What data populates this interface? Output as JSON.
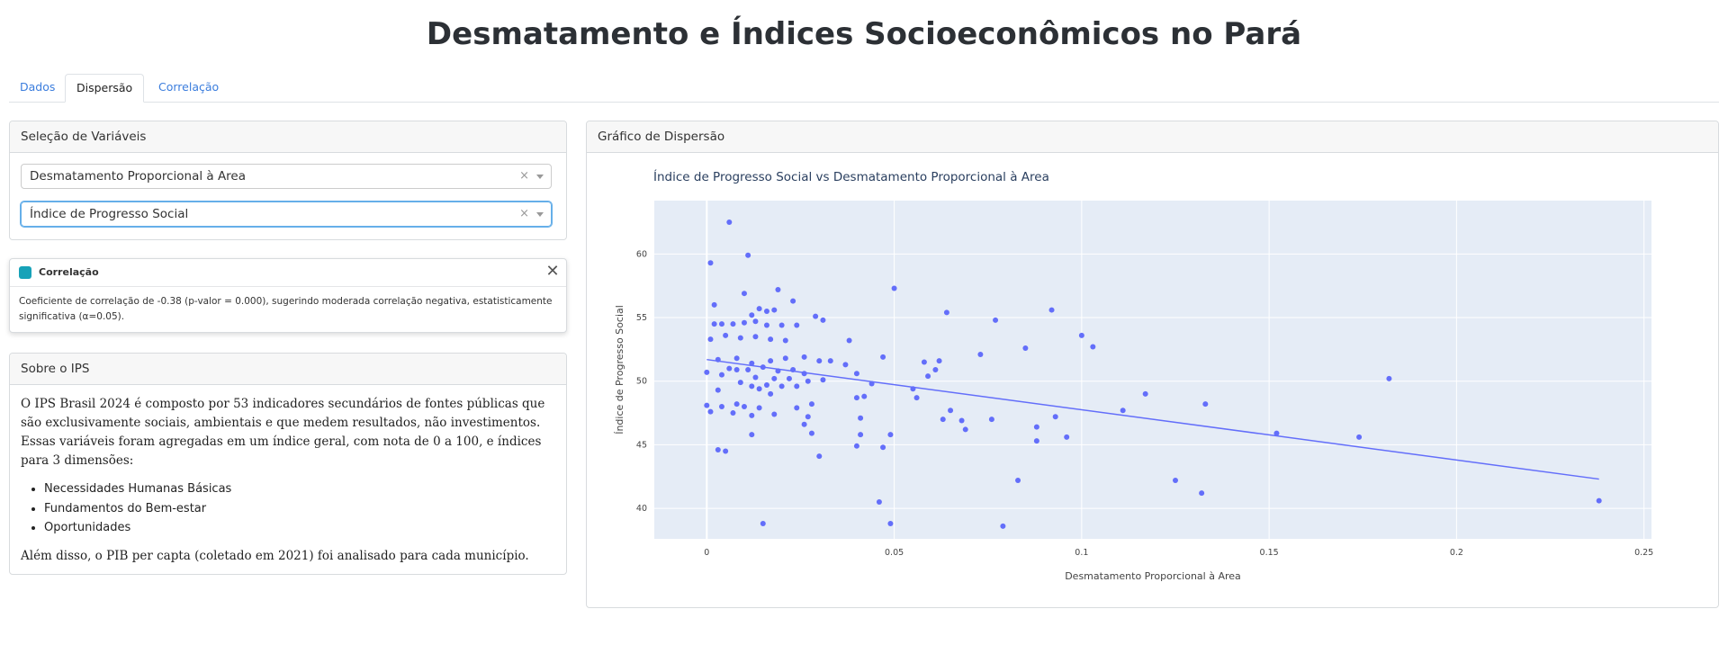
{
  "page": {
    "title": "Desmatamento e Índices Socioeconômicos no Pará"
  },
  "tabs": [
    {
      "label": "Dados",
      "active": false
    },
    {
      "label": "Dispersão",
      "active": true
    },
    {
      "label": "Correlação",
      "active": false
    }
  ],
  "variables": {
    "header": "Seleção de Variáveis",
    "x_value": "Desmatamento Proporcional à Area",
    "y_value": "Índice de Progresso Social",
    "clear_glyph": "×"
  },
  "toast": {
    "title": "Correlação",
    "body": "Coeficiente de correlação de -0.38 (p-valor = 0.000), sugerindo moderada correlação negativa, estatisticamente significativa (α=0.05).",
    "close_glyph": "✕",
    "icon_color": "#17a2b8"
  },
  "about": {
    "header": "Sobre o IPS",
    "intro": "O IPS Brasil 2024 é composto por 53 indicadores secundários de fontes públicas que são exclusivamente sociais, ambientais e que medem resultados, não investimentos. Essas variáveis foram agregadas em um índice geral, com nota de 0 a 100, e índices para 3 dimensões:",
    "dimensions": [
      "Necessidades Humanas Básicas",
      "Fundamentos do Bem-estar",
      "Oportunidades"
    ],
    "outro": "Além disso, o PIB per capta (coletado em 2021) foi analisado para cada município."
  },
  "chart_card": {
    "header": "Gráfico de Dispersão"
  },
  "chart_data": {
    "type": "scatter",
    "title": "Índice de Progresso Social vs Desmatamento Proporcional à Area",
    "xlabel": "Desmatamento Proporcional à Area",
    "ylabel": "Índice de Progresso Social",
    "xlim": [
      -0.014,
      0.252
    ],
    "ylim": [
      37.6,
      64.2
    ],
    "xticks": [
      0,
      0.05,
      0.1,
      0.15,
      0.2,
      0.25
    ],
    "xtick_labels": [
      "0",
      "0.05",
      "0.1",
      "0.15",
      "0.2",
      "0.25"
    ],
    "yticks": [
      40,
      45,
      50,
      55,
      60
    ],
    "yticks_labels": [
      "40",
      "45",
      "50",
      "55",
      "60"
    ],
    "grid": true,
    "marker_color": "#636efa",
    "plot_bg": "#e5ecf6",
    "trendline": {
      "x": [
        0,
        0.238
      ],
      "y": [
        51.7,
        42.3
      ]
    },
    "points": [
      [
        0.006,
        62.5
      ],
      [
        0.001,
        59.3
      ],
      [
        0.011,
        59.9
      ],
      [
        0.01,
        56.9
      ],
      [
        0.019,
        57.2
      ],
      [
        0.05,
        57.3
      ],
      [
        0.002,
        56.0
      ],
      [
        0.023,
        56.3
      ],
      [
        0.092,
        55.6
      ],
      [
        0.064,
        55.4
      ],
      [
        0.014,
        55.7
      ],
      [
        0.016,
        55.5
      ],
      [
        0.018,
        55.6
      ],
      [
        0.012,
        55.2
      ],
      [
        0.029,
        55.1
      ],
      [
        0.077,
        54.8
      ],
      [
        0.031,
        54.8
      ],
      [
        0.002,
        54.5
      ],
      [
        0.004,
        54.5
      ],
      [
        0.007,
        54.5
      ],
      [
        0.01,
        54.6
      ],
      [
        0.013,
        54.7
      ],
      [
        0.016,
        54.4
      ],
      [
        0.02,
        54.4
      ],
      [
        0.024,
        54.4
      ],
      [
        0.001,
        53.3
      ],
      [
        0.005,
        53.6
      ],
      [
        0.009,
        53.4
      ],
      [
        0.013,
        53.5
      ],
      [
        0.017,
        53.3
      ],
      [
        0.021,
        53.2
      ],
      [
        0.038,
        53.2
      ],
      [
        0.1,
        53.6
      ],
      [
        0.103,
        52.7
      ],
      [
        0.085,
        52.6
      ],
      [
        0.073,
        52.1
      ],
      [
        0.047,
        51.9
      ],
      [
        0.003,
        51.7
      ],
      [
        0.008,
        51.8
      ],
      [
        0.012,
        51.4
      ],
      [
        0.017,
        51.6
      ],
      [
        0.021,
        51.8
      ],
      [
        0.026,
        51.9
      ],
      [
        0.03,
        51.6
      ],
      [
        0.033,
        51.6
      ],
      [
        0.037,
        51.3
      ],
      [
        0.058,
        51.5
      ],
      [
        0.062,
        51.6
      ],
      [
        0.006,
        51.0
      ],
      [
        0.011,
        50.9
      ],
      [
        0.015,
        51.1
      ],
      [
        0.019,
        50.8
      ],
      [
        0.023,
        50.9
      ],
      [
        0.026,
        50.6
      ],
      [
        0.04,
        50.6
      ],
      [
        0.061,
        50.9
      ],
      [
        0.0,
        50.7
      ],
      [
        0.004,
        50.5
      ],
      [
        0.008,
        50.9
      ],
      [
        0.013,
        50.3
      ],
      [
        0.018,
        50.2
      ],
      [
        0.022,
        50.2
      ],
      [
        0.027,
        50.0
      ],
      [
        0.031,
        50.1
      ],
      [
        0.059,
        50.4
      ],
      [
        0.182,
        50.2
      ],
      [
        0.009,
        49.9
      ],
      [
        0.012,
        49.6
      ],
      [
        0.016,
        49.7
      ],
      [
        0.02,
        49.6
      ],
      [
        0.024,
        49.6
      ],
      [
        0.044,
        49.8
      ],
      [
        0.055,
        49.4
      ],
      [
        0.003,
        49.3
      ],
      [
        0.014,
        49.4
      ],
      [
        0.017,
        49.0
      ],
      [
        0.117,
        49.0
      ],
      [
        0.04,
        48.7
      ],
      [
        0.042,
        48.8
      ],
      [
        0.056,
        48.7
      ],
      [
        0.0,
        48.1
      ],
      [
        0.004,
        48.0
      ],
      [
        0.008,
        48.2
      ],
      [
        0.01,
        48.0
      ],
      [
        0.014,
        47.9
      ],
      [
        0.024,
        47.9
      ],
      [
        0.028,
        48.2
      ],
      [
        0.065,
        47.7
      ],
      [
        0.111,
        47.7
      ],
      [
        0.133,
        48.2
      ],
      [
        0.001,
        47.6
      ],
      [
        0.007,
        47.5
      ],
      [
        0.012,
        47.3
      ],
      [
        0.018,
        47.4
      ],
      [
        0.027,
        47.2
      ],
      [
        0.041,
        47.1
      ],
      [
        0.063,
        47.0
      ],
      [
        0.068,
        46.9
      ],
      [
        0.076,
        47.0
      ],
      [
        0.093,
        47.2
      ],
      [
        0.026,
        46.6
      ],
      [
        0.088,
        46.4
      ],
      [
        0.069,
        46.2
      ],
      [
        0.012,
        45.8
      ],
      [
        0.028,
        45.9
      ],
      [
        0.041,
        45.8
      ],
      [
        0.049,
        45.8
      ],
      [
        0.096,
        45.6
      ],
      [
        0.152,
        45.9
      ],
      [
        0.174,
        45.6
      ],
      [
        0.088,
        45.3
      ],
      [
        0.04,
        44.9
      ],
      [
        0.047,
        44.8
      ],
      [
        0.003,
        44.6
      ],
      [
        0.005,
        44.5
      ],
      [
        0.03,
        44.1
      ],
      [
        0.083,
        42.2
      ],
      [
        0.125,
        42.2
      ],
      [
        0.132,
        41.2
      ],
      [
        0.046,
        40.5
      ],
      [
        0.238,
        40.6
      ],
      [
        0.015,
        38.8
      ],
      [
        0.049,
        38.8
      ],
      [
        0.079,
        38.6
      ]
    ]
  }
}
